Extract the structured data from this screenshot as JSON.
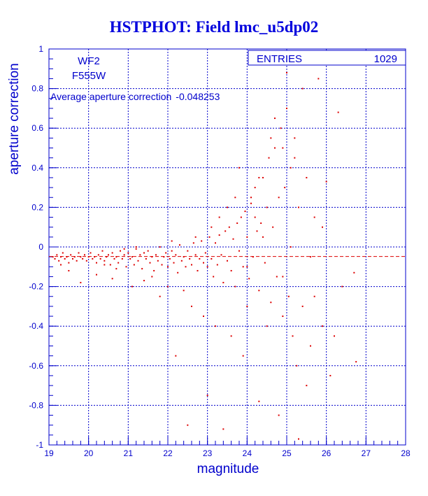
{
  "chart_data": {
    "type": "scatter",
    "title": "HSTPHOT: Field lmc_u5dp02",
    "xlabel": "magnitude",
    "ylabel": "aperture correction",
    "xlim": [
      19,
      28
    ],
    "ylim": [
      -1,
      1
    ],
    "xticks": [
      "19",
      "20",
      "21",
      "22",
      "23",
      "24",
      "25",
      "26",
      "27",
      "28"
    ],
    "yticks": [
      "-1",
      "-0.8",
      "-0.6",
      "-0.4",
      "-0.2",
      "0",
      "0.2",
      "0.4",
      "0.6",
      "0.8",
      "1"
    ],
    "grid": true,
    "annotations": {
      "chip": "WF2",
      "filter": "F555W",
      "average_label": "Average aperture correction",
      "average_value": "-0.048253"
    },
    "average_line": -0.048253,
    "stats": {
      "entries_label": "ENTRIES",
      "entries_value": "1029"
    },
    "colors": {
      "axis": "#0000cc",
      "title": "#0000dd",
      "points": "#dd0000",
      "average_line": "#dd0000"
    },
    "series": [
      {
        "name": "",
        "points": [
          [
            19.1,
            -0.05
          ],
          [
            19.15,
            -0.06
          ],
          [
            19.2,
            -0.04
          ],
          [
            19.25,
            -0.07
          ],
          [
            19.3,
            -0.05
          ],
          [
            19.35,
            -0.03
          ],
          [
            19.4,
            -0.06
          ],
          [
            19.45,
            -0.05
          ],
          [
            19.5,
            -0.08
          ],
          [
            19.55,
            -0.04
          ],
          [
            19.6,
            -0.06
          ],
          [
            19.65,
            -0.05
          ],
          [
            19.7,
            -0.07
          ],
          [
            19.75,
            -0.03
          ],
          [
            19.8,
            -0.05
          ],
          [
            19.85,
            -0.06
          ],
          [
            19.9,
            -0.04
          ],
          [
            19.95,
            -0.07
          ],
          [
            20.0,
            -0.05
          ],
          [
            20.05,
            -0.03
          ],
          [
            20.1,
            -0.06
          ],
          [
            20.15,
            -0.05
          ],
          [
            20.2,
            -0.08
          ],
          [
            20.25,
            -0.04
          ],
          [
            20.3,
            -0.06
          ],
          [
            20.35,
            -0.02
          ],
          [
            20.4,
            -0.07
          ],
          [
            20.45,
            -0.05
          ],
          [
            20.5,
            -0.04
          ],
          [
            20.55,
            -0.09
          ],
          [
            20.6,
            -0.03
          ],
          [
            20.65,
            -0.06
          ],
          [
            20.7,
            -0.05
          ],
          [
            20.75,
            -0.08
          ],
          [
            20.8,
            -0.02
          ],
          [
            20.85,
            -0.06
          ],
          [
            20.9,
            -0.04
          ],
          [
            20.95,
            -0.1
          ],
          [
            21.0,
            -0.03
          ],
          [
            21.05,
            -0.06
          ],
          [
            21.1,
            -0.05
          ],
          [
            21.15,
            -0.09
          ],
          [
            21.2,
            -0.01
          ],
          [
            21.25,
            -0.07
          ],
          [
            21.3,
            -0.04
          ],
          [
            21.35,
            -0.11
          ],
          [
            21.4,
            -0.03
          ],
          [
            21.45,
            -0.06
          ],
          [
            21.5,
            -0.02
          ],
          [
            21.55,
            -0.08
          ],
          [
            21.6,
            -0.05
          ],
          [
            21.65,
            -0.12
          ],
          [
            21.7,
            -0.04
          ],
          [
            21.75,
            -0.07
          ],
          [
            21.8,
            0.0
          ],
          [
            21.85,
            -0.09
          ],
          [
            21.9,
            -0.05
          ],
          [
            21.95,
            -0.03
          ],
          [
            22.0,
            -0.1
          ],
          [
            22.05,
            -0.06
          ],
          [
            22.1,
            -0.02
          ],
          [
            22.15,
            -0.08
          ],
          [
            22.2,
            -0.04
          ],
          [
            22.25,
            -0.13
          ],
          [
            22.3,
            0.01
          ],
          [
            22.35,
            -0.07
          ],
          [
            22.4,
            -0.05
          ],
          [
            22.45,
            -0.1
          ],
          [
            22.5,
            -0.02
          ],
          [
            22.55,
            -0.06
          ],
          [
            22.6,
            -0.09
          ],
          [
            22.65,
            0.02
          ],
          [
            22.7,
            -0.04
          ],
          [
            22.75,
            -0.12
          ],
          [
            22.8,
            -0.06
          ],
          [
            22.85,
            0.03
          ],
          [
            22.9,
            -0.08
          ],
          [
            22.95,
            -0.03
          ],
          [
            23.0,
            -0.1
          ],
          [
            23.05,
            0.05
          ],
          [
            23.1,
            -0.06
          ],
          [
            23.15,
            -0.15
          ],
          [
            23.2,
            0.02
          ],
          [
            23.25,
            -0.09
          ],
          [
            23.3,
            0.06
          ],
          [
            23.35,
            -0.04
          ],
          [
            23.4,
            -0.18
          ],
          [
            23.45,
            0.08
          ],
          [
            23.5,
            -0.07
          ],
          [
            23.55,
            0.1
          ],
          [
            23.6,
            -0.12
          ],
          [
            23.65,
            0.04
          ],
          [
            23.7,
            -0.2
          ],
          [
            23.75,
            0.12
          ],
          [
            23.8,
            -0.02
          ],
          [
            23.85,
            0.15
          ],
          [
            23.9,
            -0.1
          ],
          [
            23.95,
            0.18
          ],
          [
            24.0,
            0.05
          ],
          [
            24.05,
            -0.16
          ],
          [
            24.1,
            0.22
          ],
          [
            24.15,
            -0.05
          ],
          [
            24.2,
            0.3
          ],
          [
            24.25,
            0.08
          ],
          [
            24.3,
            -0.22
          ],
          [
            24.35,
            0.12
          ],
          [
            24.4,
            0.35
          ],
          [
            24.45,
            -0.08
          ],
          [
            24.5,
            0.2
          ],
          [
            24.55,
            0.45
          ],
          [
            24.6,
            -0.28
          ],
          [
            24.65,
            0.1
          ],
          [
            24.7,
            0.5
          ],
          [
            24.75,
            -0.15
          ],
          [
            24.8,
            0.25
          ],
          [
            24.85,
            0.6
          ],
          [
            24.9,
            -0.35
          ],
          [
            24.95,
            0.3
          ],
          [
            25.0,
            0.7
          ],
          [
            25.05,
            -0.25
          ],
          [
            25.1,
            0.4
          ],
          [
            25.15,
            -0.45
          ],
          [
            25.2,
            0.55
          ],
          [
            25.25,
            -0.6
          ],
          [
            25.3,
            0.2
          ],
          [
            25.4,
            -0.3
          ],
          [
            25.5,
            0.35
          ],
          [
            25.6,
            -0.5
          ],
          [
            25.7,
            0.15
          ],
          [
            25.8,
            0.85
          ],
          [
            25.9,
            -0.4
          ],
          [
            26.0,
            0.33
          ],
          [
            26.1,
            -0.65
          ],
          [
            26.3,
            0.68
          ],
          [
            26.4,
            -0.2
          ],
          [
            26.7,
            -0.13
          ],
          [
            26.75,
            -0.58
          ],
          [
            26.8,
            0.95
          ],
          [
            22.5,
            -0.9
          ],
          [
            23.4,
            -0.92
          ],
          [
            24.3,
            -0.78
          ],
          [
            25.3,
            -0.97
          ],
          [
            22.2,
            -0.55
          ],
          [
            23.0,
            -0.75
          ],
          [
            23.9,
            -0.55
          ],
          [
            24.8,
            -0.85
          ],
          [
            22.9,
            -0.35
          ],
          [
            23.6,
            -0.45
          ],
          [
            24.5,
            -0.4
          ],
          [
            25.5,
            -0.7
          ],
          [
            21.8,
            -0.25
          ],
          [
            22.6,
            -0.3
          ],
          [
            23.2,
            -0.4
          ],
          [
            24.0,
            -0.3
          ],
          [
            24.9,
            -0.15
          ],
          [
            25.7,
            -0.25
          ],
          [
            26.2,
            -0.45
          ],
          [
            23.8,
            0.4
          ],
          [
            24.6,
            0.55
          ],
          [
            25.2,
            0.45
          ],
          [
            24.1,
            0.25
          ],
          [
            24.9,
            0.5
          ],
          [
            25.4,
            0.8
          ],
          [
            24.3,
            0.35
          ],
          [
            23.5,
            0.2
          ],
          [
            24.7,
            0.65
          ],
          [
            25.9,
            0.1
          ],
          [
            25.0,
            0.88
          ],
          [
            19.5,
            -0.12
          ],
          [
            19.8,
            -0.18
          ],
          [
            20.2,
            -0.14
          ],
          [
            20.6,
            -0.16
          ],
          [
            21.1,
            -0.2
          ],
          [
            21.4,
            -0.17
          ],
          [
            20.9,
            -0.01
          ],
          [
            21.2,
            0.0
          ],
          [
            20.4,
            -0.09
          ],
          [
            19.3,
            -0.09
          ],
          [
            20.7,
            -0.11
          ],
          [
            21.6,
            -0.15
          ],
          [
            22.0,
            -0.2
          ],
          [
            22.4,
            -0.22
          ],
          [
            22.1,
            0.03
          ],
          [
            22.7,
            0.05
          ],
          [
            23.1,
            0.1
          ],
          [
            23.3,
            0.15
          ],
          [
            23.7,
            0.25
          ],
          [
            24.2,
            0.15
          ],
          [
            24.4,
            0.05
          ],
          [
            25.1,
            0.0
          ],
          [
            25.6,
            -0.05
          ],
          [
            24.0,
            -0.1
          ]
        ]
      }
    ]
  }
}
